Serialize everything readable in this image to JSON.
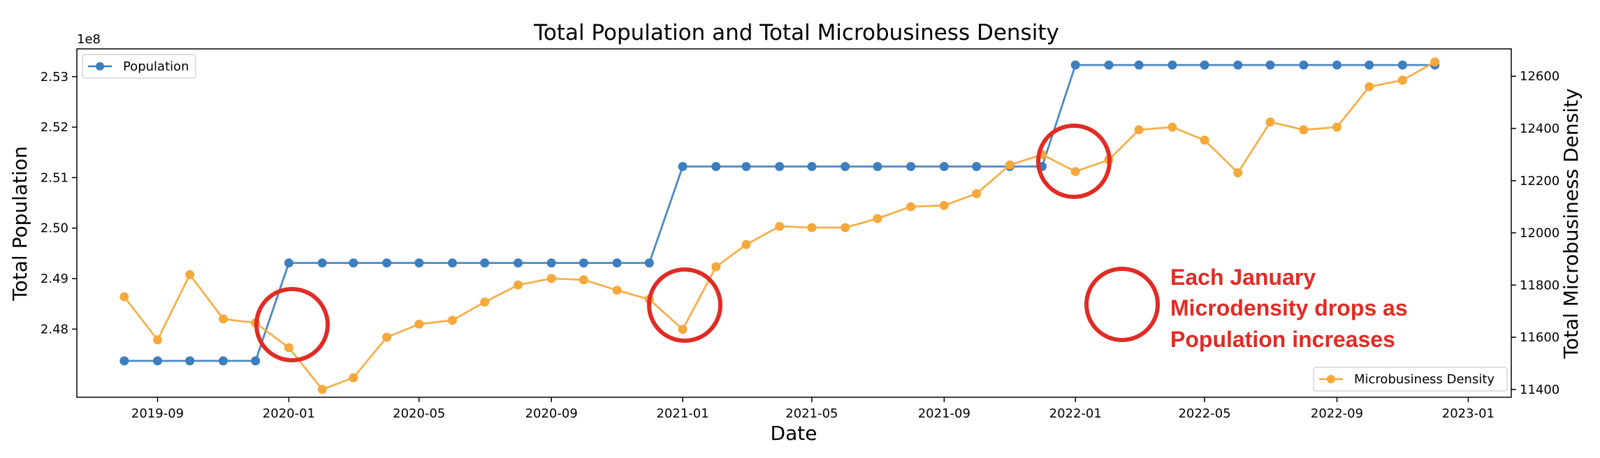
{
  "chart_data": {
    "type": "line",
    "title": "Total Population and Total Microbusiness Density",
    "xlabel": "Date",
    "ylabel_left": "Total Population",
    "ylabel_right": "Total Microbusiness Density",
    "left_offset_label": "1e8",
    "xlim": [
      "2019-06-18",
      "2023-02-10"
    ],
    "ylim_left": [
      2.4665,
      2.5355
    ],
    "ylim_right": [
      11370,
      12705
    ],
    "x_ticks": [
      "2019-09",
      "2020-01",
      "2020-05",
      "2020-09",
      "2021-01",
      "2021-05",
      "2021-09",
      "2022-01",
      "2022-05",
      "2022-09",
      "2023-01"
    ],
    "y_ticks_left": [
      "2.48",
      "2.49",
      "2.50",
      "2.51",
      "2.52",
      "2.53"
    ],
    "y_ticks_right": [
      "11400",
      "11600",
      "11800",
      "12000",
      "12200",
      "12400",
      "12600"
    ],
    "x": [
      "2019-08-01",
      "2019-09-01",
      "2019-10-01",
      "2019-11-01",
      "2019-12-01",
      "2020-01-01",
      "2020-02-01",
      "2020-03-01",
      "2020-04-01",
      "2020-05-01",
      "2020-06-01",
      "2020-07-01",
      "2020-08-01",
      "2020-09-01",
      "2020-10-01",
      "2020-11-01",
      "2020-12-01",
      "2021-01-01",
      "2021-02-01",
      "2021-03-01",
      "2021-04-01",
      "2021-05-01",
      "2021-06-01",
      "2021-07-01",
      "2021-08-01",
      "2021-09-01",
      "2021-10-01",
      "2021-11-01",
      "2021-12-01",
      "2022-01-01",
      "2022-02-01",
      "2022-03-01",
      "2022-04-01",
      "2022-05-01",
      "2022-06-01",
      "2022-07-01",
      "2022-08-01",
      "2022-09-01",
      "2022-10-01",
      "2022-11-01",
      "2022-12-01"
    ],
    "series": [
      {
        "name": "Population",
        "axis": "left",
        "color": "#3d7ebf",
        "values": [
          2.4737,
          2.4737,
          2.4737,
          2.4737,
          2.4737,
          2.4931,
          2.4931,
          2.4931,
          2.4931,
          2.4931,
          2.4931,
          2.4931,
          2.4931,
          2.4931,
          2.4931,
          2.4931,
          2.4931,
          2.5122,
          2.5122,
          2.5122,
          2.5122,
          2.5122,
          2.5122,
          2.5122,
          2.5122,
          2.5122,
          2.5122,
          2.5122,
          2.5122,
          2.5323,
          2.5323,
          2.5323,
          2.5323,
          2.5323,
          2.5323,
          2.5323,
          2.5323,
          2.5323,
          2.5323,
          2.5323,
          2.5323
        ]
      },
      {
        "name": "Microbusiness Density",
        "axis": "right",
        "color": "#f5a83c",
        "values": [
          11755,
          11590,
          11840,
          11670,
          11655,
          11560,
          11400,
          11445,
          11600,
          11650,
          11665,
          11735,
          11800,
          11825,
          11820,
          11780,
          11745,
          11630,
          11870,
          11955,
          12025,
          12020,
          12020,
          12055,
          12100,
          12105,
          12150,
          12260,
          12300,
          12235,
          12280,
          12395,
          12405,
          12355,
          12230,
          12425,
          12395,
          12405,
          12560,
          12585,
          12655
        ]
      }
    ],
    "legend_top_left": "Population",
    "legend_bottom_right": "Microbusiness Density",
    "annotation": {
      "lines": [
        "Each January",
        "Microdensity drops as",
        "Population increases"
      ],
      "color": "#e12b24"
    }
  }
}
